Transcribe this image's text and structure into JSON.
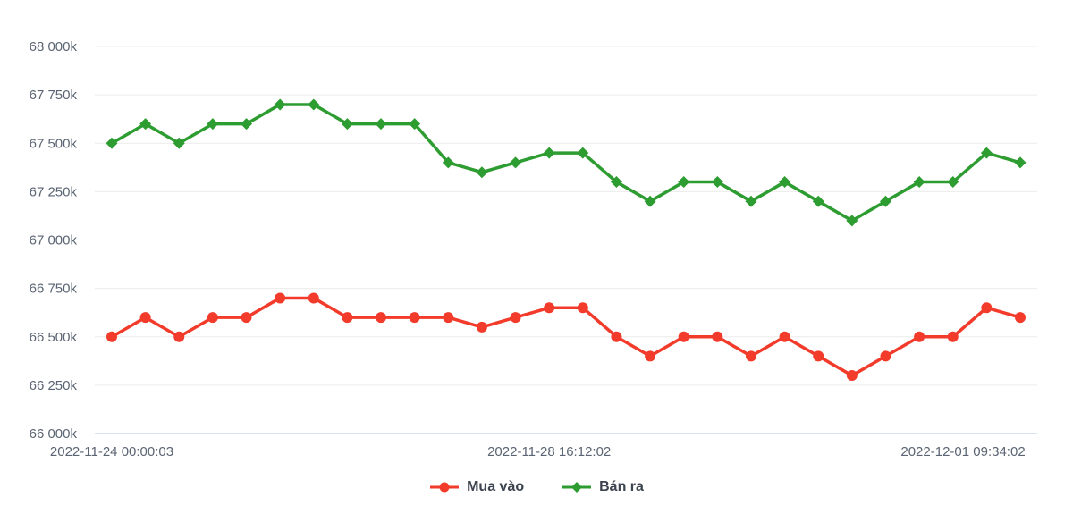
{
  "chart_data": {
    "type": "line",
    "title": "",
    "grid": true,
    "legend_position": "bottom",
    "y_axis": {
      "min": 66000,
      "max": 68000,
      "step": 250,
      "unit": "k"
    },
    "y_tick_labels": [
      "68 000k",
      "67 750k",
      "67 500k",
      "67 250k",
      "67 000k",
      "66 750k",
      "66 500k",
      "66 250k",
      "66 000k"
    ],
    "x_ticks": [
      {
        "label": "2022-11-24 00:00:03",
        "index": 0
      },
      {
        "label": "2022-11-28 16:12:02",
        "index": 13
      },
      {
        "label": "2022-12-01 09:34:02",
        "index": 25.3
      }
    ],
    "series": [
      {
        "name": "Mua vào",
        "marker": "circle",
        "color": "#f23b2b",
        "values": [
          66500,
          66600,
          66500,
          66600,
          66600,
          66700,
          66700,
          66600,
          66600,
          66600,
          66600,
          66550,
          66600,
          66650,
          66650,
          66500,
          66400,
          66500,
          66500,
          66400,
          66500,
          66400,
          66300,
          66400,
          66500,
          66500,
          66650,
          66600
        ]
      },
      {
        "name": "Bán ra",
        "marker": "diamond",
        "color": "#2d9c31",
        "values": [
          67500,
          67600,
          67500,
          67600,
          67600,
          67700,
          67700,
          67600,
          67600,
          67600,
          67400,
          67350,
          67400,
          67450,
          67450,
          67300,
          67200,
          67300,
          67300,
          67200,
          67300,
          67200,
          67100,
          67200,
          67300,
          67300,
          67450,
          67400
        ]
      }
    ]
  },
  "colors": {
    "grid_line": "#ececec",
    "base_axis_line": "#d9e2f1",
    "tick_text": "#5a6472",
    "legend_text": "#3d4450"
  }
}
